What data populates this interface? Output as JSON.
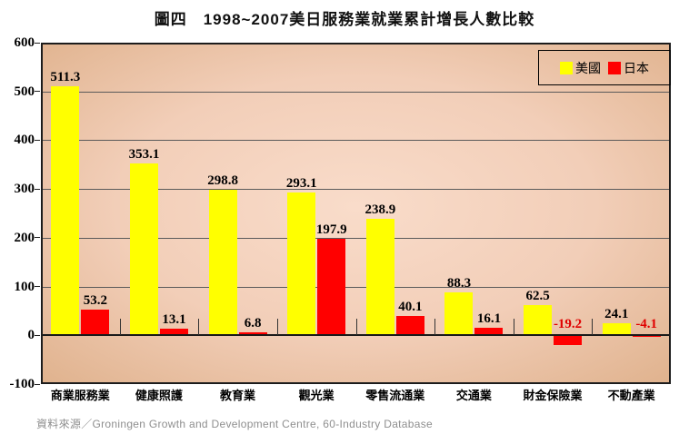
{
  "title": "圖四　1998~2007美日服務業就業累計增長人數比較",
  "source": "資料來源／Groningen Growth and Development Centre, 60-Industry Database",
  "legend": {
    "us_label": "美國",
    "japan_label": "日本"
  },
  "colors": {
    "us_bar": "#ffff00",
    "japan_bar": "#ff0000",
    "negative_label": "#e00000",
    "positive_label": "#000000",
    "plot_bg_center": "#f9dcca",
    "plot_bg_edge": "#d9a87e",
    "gridline": "#5a5a5a"
  },
  "chart_data": {
    "type": "bar",
    "title": "圖四　1998~2007美日服務業就業累計增長人數比較",
    "categories": [
      "商業服務業",
      "健康照護",
      "教育業",
      "觀光業",
      "零售流通業",
      "交通業",
      "財金保險業",
      "不動產業"
    ],
    "series": [
      {
        "name": "美國",
        "color": "#ffff00",
        "values": [
          511.3,
          353.1,
          298.8,
          293.1,
          238.9,
          88.3,
          62.5,
          24.1
        ]
      },
      {
        "name": "日本",
        "color": "#ff0000",
        "values": [
          53.2,
          13.1,
          6.8,
          197.9,
          40.1,
          16.1,
          -19.2,
          -4.1
        ]
      }
    ],
    "xlabel": "",
    "ylabel": "",
    "ylim": [
      -100,
      600
    ],
    "yticks": [
      600,
      500,
      400,
      300,
      200,
      100,
      0,
      -100
    ],
    "grid": true,
    "legend_position": "top-right",
    "data_labels": true
  }
}
